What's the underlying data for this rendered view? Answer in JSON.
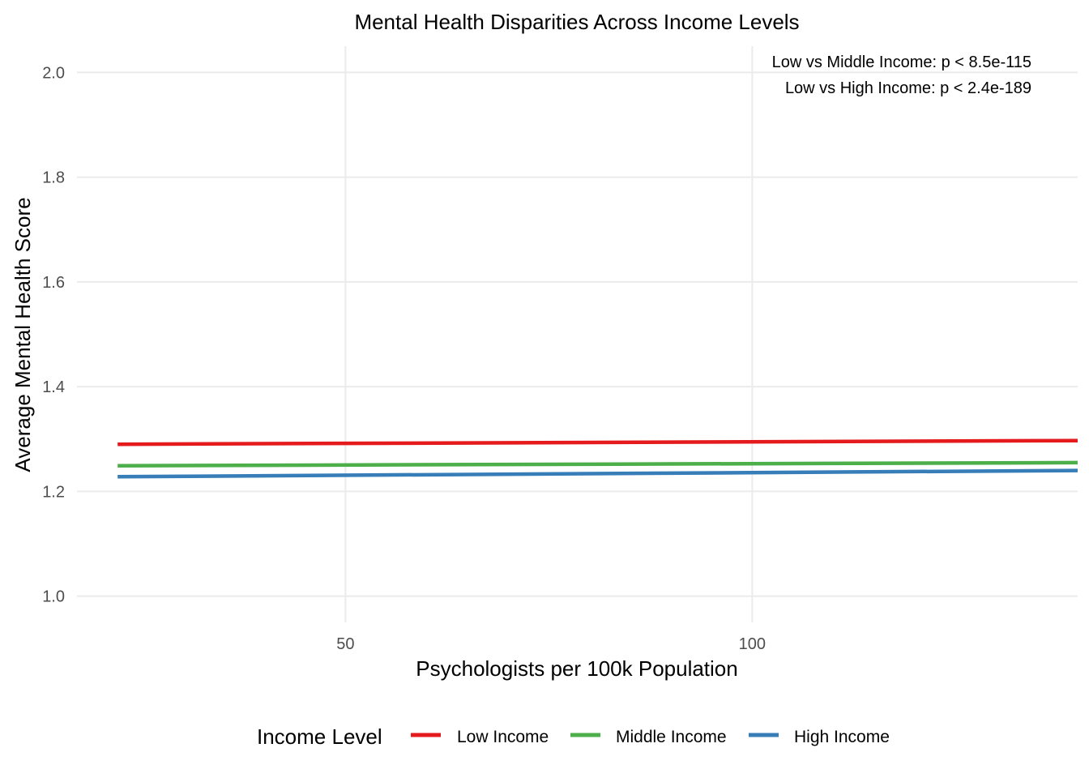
{
  "chart_data": {
    "type": "line",
    "title": "Mental Health Disparities Across Income Levels",
    "xlabel": "Psychologists per 100k Population",
    "ylabel": "Average Mental Health Score",
    "xlim": [
      17,
      140
    ],
    "ylim": [
      0.95,
      2.05
    ],
    "x_ticks": [
      {
        "value": 50,
        "label": "50"
      },
      {
        "value": 100,
        "label": "100"
      }
    ],
    "y_ticks": [
      {
        "value": 1.0,
        "label": "1.0"
      },
      {
        "value": 1.2,
        "label": "1.2"
      },
      {
        "value": 1.4,
        "label": "1.4"
      },
      {
        "value": 1.6,
        "label": "1.6"
      },
      {
        "value": 1.8,
        "label": "1.8"
      },
      {
        "value": 2.0,
        "label": "2.0"
      }
    ],
    "grid": true,
    "legend": {
      "title": "Income Level",
      "position": "bottom"
    },
    "annotations": [
      "Low vs Middle Income: p < 8.5e-115",
      "Low vs High Income: p < 2.4e-189"
    ],
    "series": [
      {
        "name": "Low Income",
        "color": "#E41A1C",
        "x": [
          22,
          140
        ],
        "y": [
          1.29,
          1.297
        ]
      },
      {
        "name": "Middle Income",
        "color": "#4DAF4A",
        "x": [
          22,
          140
        ],
        "y": [
          1.249,
          1.255
        ]
      },
      {
        "name": "High Income",
        "color": "#377EB8",
        "x": [
          22,
          140
        ],
        "y": [
          1.228,
          1.24
        ]
      }
    ]
  }
}
